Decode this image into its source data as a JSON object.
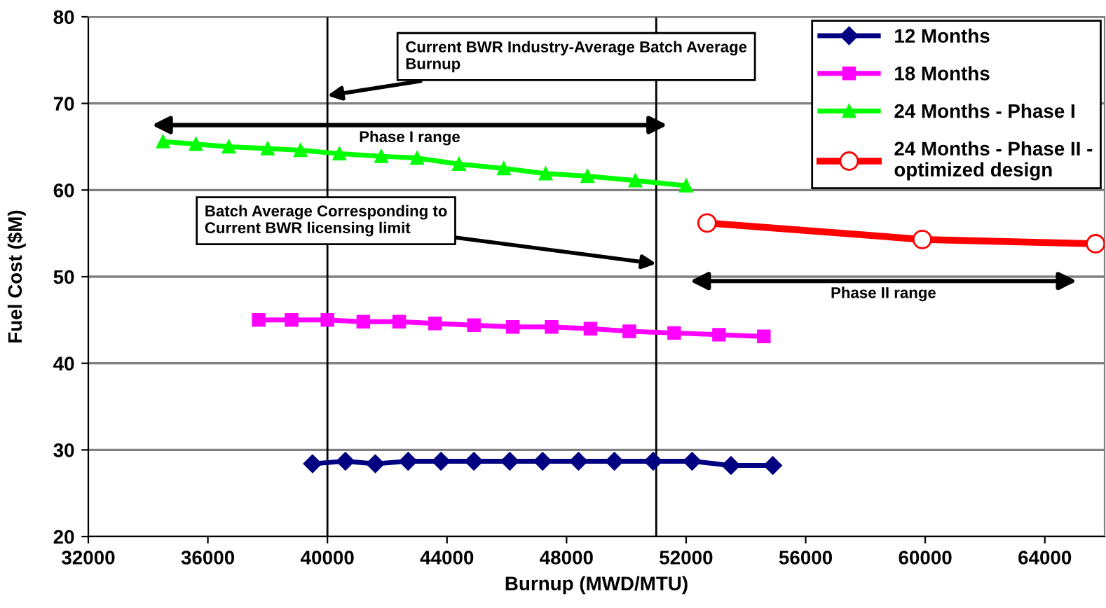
{
  "chart_data": {
    "type": "line",
    "xlabel": "Burnup (MWD/MTU)",
    "ylabel": "Fuel Cost ($M)",
    "xlim": [
      32000,
      66000
    ],
    "xticks": [
      32000,
      36000,
      40000,
      44000,
      48000,
      52000,
      56000,
      60000,
      64000
    ],
    "ylim": [
      20,
      80
    ],
    "yticks": [
      20,
      30,
      40,
      50,
      60,
      70,
      80
    ],
    "grid": "y",
    "legend": "top right",
    "line_style": "solid",
    "series": [
      {
        "name": "12 Months",
        "color": "#000080",
        "marker": "diamond",
        "x": [
          39500,
          40600,
          41600,
          42700,
          43800,
          44900,
          46100,
          47200,
          48400,
          49600,
          50900,
          52200,
          53500,
          54900
        ],
        "values": [
          28.4,
          28.7,
          28.4,
          28.7,
          28.7,
          28.7,
          28.7,
          28.7,
          28.7,
          28.7,
          28.7,
          28.7,
          28.2,
          28.2
        ]
      },
      {
        "name": "18 Months",
        "color": "#ff00ff",
        "marker": "square",
        "x": [
          37700,
          38800,
          40000,
          41200,
          42400,
          43600,
          44900,
          46200,
          47500,
          48800,
          50100,
          51600,
          53100,
          54600
        ],
        "values": [
          45.0,
          45.0,
          45.0,
          44.8,
          44.8,
          44.6,
          44.4,
          44.2,
          44.2,
          44.0,
          43.7,
          43.5,
          43.3,
          43.1
        ]
      },
      {
        "name": "24 Months - Phase I",
        "color": "#00ff00",
        "marker": "triangle",
        "x": [
          34500,
          35600,
          36700,
          38000,
          39100,
          40400,
          41800,
          43000,
          44400,
          45900,
          47300,
          48700,
          50300,
          52000
        ],
        "values": [
          65.6,
          65.3,
          65.0,
          64.8,
          64.6,
          64.2,
          63.9,
          63.7,
          63.0,
          62.5,
          61.9,
          61.6,
          61.1,
          60.5
        ]
      },
      {
        "name": "24 Months - Phase II -\noptimized design",
        "color": "#ff0000",
        "marker": "circle",
        "x": [
          52700,
          59900,
          65700
        ],
        "values": [
          56.2,
          54.3,
          53.8
        ]
      }
    ],
    "ref_lines": [
      {
        "axis": "x",
        "value": 40000,
        "color": "#000000"
      },
      {
        "axis": "x",
        "value": 51000,
        "color": "#000000"
      }
    ],
    "annotations": [
      {
        "text": "Current BWR Industry-Average Batch Average\nBurnup",
        "x": 40000,
        "y": 70.9
      },
      {
        "text": "Batch Average Corresponding to\nCurrent BWR licensing limit",
        "x": 51000,
        "y": 51.5
      },
      "Phase I range",
      "Phase II range"
    ]
  }
}
